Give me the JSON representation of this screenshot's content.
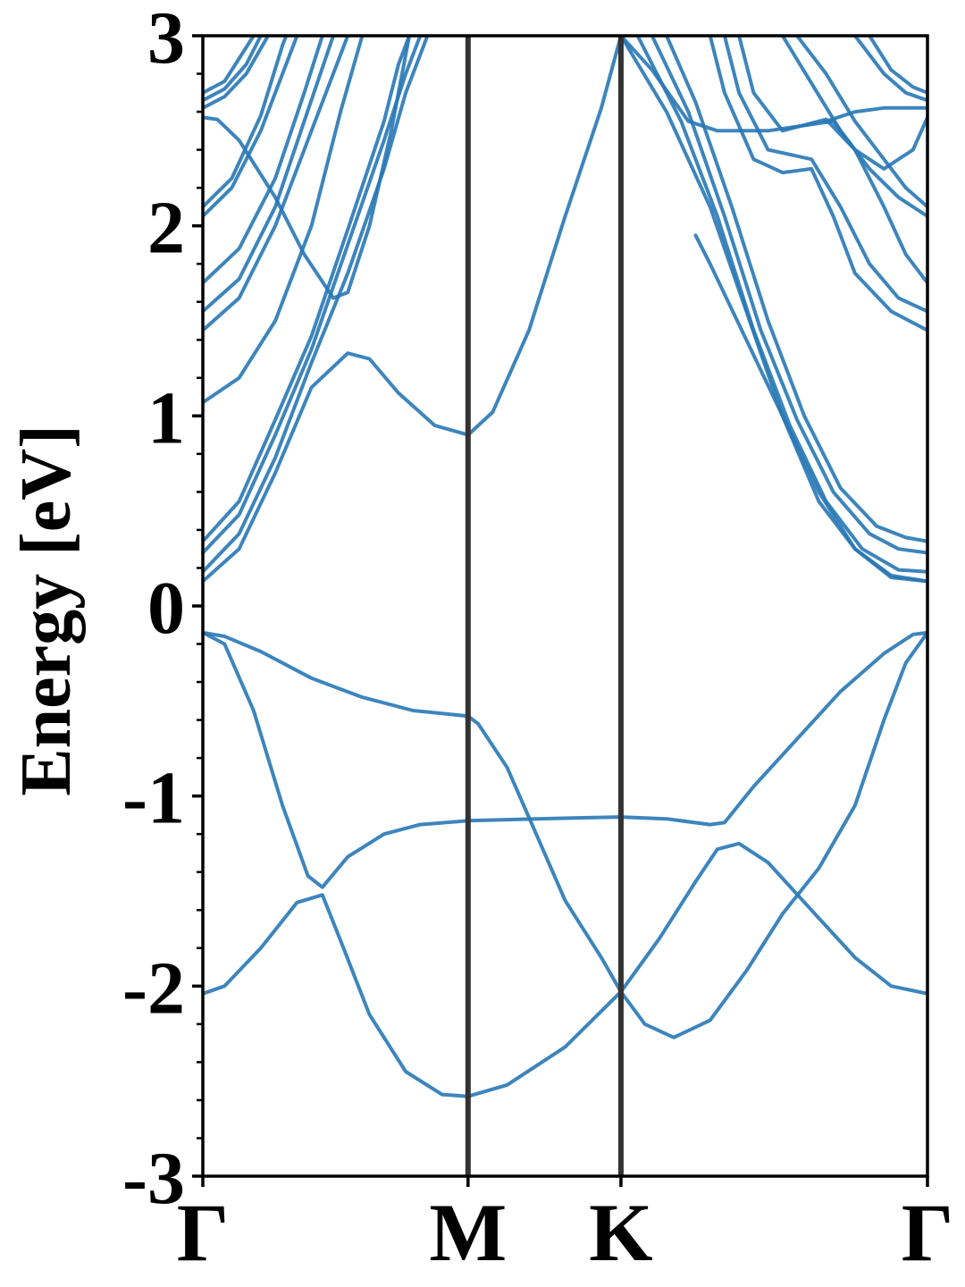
{
  "chart_data": {
    "type": "line",
    "title": "",
    "xlabel": "",
    "ylabel": "Energy [eV]",
    "ylim": [
      -3,
      3
    ],
    "xlim": [
      0,
      1
    ],
    "grid": false,
    "line_color": "#2878b5",
    "symmetry_line_color": "#333333",
    "x_ticks": [
      {
        "label": "Γ",
        "x": 0.0
      },
      {
        "label": "M",
        "x": 0.366
      },
      {
        "label": "K",
        "x": 0.577
      },
      {
        "label": "Γ",
        "x": 1.0
      }
    ],
    "symmetry_lines": [
      0.366,
      0.577
    ],
    "y_ticks": [
      {
        "label": "3",
        "value": 3
      },
      {
        "label": "2",
        "value": 2
      },
      {
        "label": "1",
        "value": 1
      },
      {
        "label": "0",
        "value": 0
      },
      {
        "label": "-1",
        "value": -1
      },
      {
        "label": "-2",
        "value": -2
      },
      {
        "label": "-3",
        "value": -3
      }
    ],
    "series": [
      {
        "points": [
          [
            0,
            -0.14
          ],
          [
            0.03,
            -0.16
          ],
          [
            0.08,
            -0.24
          ],
          [
            0.15,
            -0.38
          ],
          [
            0.22,
            -0.48
          ],
          [
            0.29,
            -0.55
          ],
          [
            0.366,
            -0.58
          ],
          [
            0.38,
            -0.62
          ],
          [
            0.42,
            -0.85
          ],
          [
            0.46,
            -1.2
          ],
          [
            0.5,
            -1.55
          ],
          [
            0.55,
            -1.85
          ],
          [
            0.577,
            -2.03
          ],
          [
            0.61,
            -2.2
          ],
          [
            0.65,
            -2.27
          ],
          [
            0.7,
            -2.18
          ],
          [
            0.75,
            -1.92
          ],
          [
            0.8,
            -1.62
          ],
          [
            0.85,
            -1.38
          ],
          [
            0.9,
            -1.05
          ],
          [
            0.94,
            -0.6
          ],
          [
            0.97,
            -0.3
          ],
          [
            1.0,
            -0.14
          ]
        ]
      },
      {
        "points": [
          [
            0,
            -0.14
          ],
          [
            0.03,
            -0.2
          ],
          [
            0.07,
            -0.55
          ],
          [
            0.11,
            -1.05
          ],
          [
            0.145,
            -1.42
          ],
          [
            0.165,
            -1.48
          ],
          [
            0.2,
            -1.32
          ],
          [
            0.25,
            -1.2
          ],
          [
            0.3,
            -1.15
          ],
          [
            0.366,
            -1.13
          ],
          [
            0.46,
            -1.12
          ],
          [
            0.577,
            -1.11
          ],
          [
            0.64,
            -1.12
          ],
          [
            0.7,
            -1.15
          ],
          [
            0.72,
            -1.14
          ],
          [
            0.76,
            -0.95
          ],
          [
            0.82,
            -0.7
          ],
          [
            0.88,
            -0.45
          ],
          [
            0.94,
            -0.25
          ],
          [
            0.98,
            -0.15
          ],
          [
            1.0,
            -0.14
          ]
        ]
      },
      {
        "points": [
          [
            0,
            -2.04
          ],
          [
            0.03,
            -2.0
          ],
          [
            0.08,
            -1.8
          ],
          [
            0.13,
            -1.56
          ],
          [
            0.165,
            -1.52
          ],
          [
            0.19,
            -1.76
          ],
          [
            0.23,
            -2.15
          ],
          [
            0.28,
            -2.45
          ],
          [
            0.33,
            -2.57
          ],
          [
            0.366,
            -2.58
          ],
          [
            0.42,
            -2.52
          ],
          [
            0.5,
            -2.32
          ],
          [
            0.577,
            -2.03
          ],
          [
            0.63,
            -1.75
          ],
          [
            0.68,
            -1.45
          ],
          [
            0.71,
            -1.28
          ],
          [
            0.74,
            -1.25
          ],
          [
            0.78,
            -1.35
          ],
          [
            0.84,
            -1.6
          ],
          [
            0.9,
            -1.85
          ],
          [
            0.95,
            -2.0
          ],
          [
            1.0,
            -2.04
          ]
        ]
      },
      {
        "points": [
          [
            0,
            1.07
          ],
          [
            0.05,
            1.2
          ],
          [
            0.1,
            1.5
          ],
          [
            0.15,
            2.0
          ],
          [
            0.19,
            2.6
          ],
          [
            0.22,
            3.0
          ]
        ]
      },
      {
        "points": [
          [
            0,
            0.13
          ],
          [
            0.05,
            0.3
          ],
          [
            0.1,
            0.7
          ],
          [
            0.15,
            1.15
          ],
          [
            0.2,
            1.33
          ],
          [
            0.23,
            1.3
          ],
          [
            0.27,
            1.12
          ],
          [
            0.32,
            0.95
          ],
          [
            0.366,
            0.9
          ],
          [
            0.4,
            1.02
          ],
          [
            0.45,
            1.45
          ],
          [
            0.5,
            2.05
          ],
          [
            0.55,
            2.62
          ],
          [
            0.577,
            3.0
          ]
        ]
      },
      {
        "points": [
          [
            0,
            0.18
          ],
          [
            0.05,
            0.38
          ],
          [
            0.1,
            0.78
          ],
          [
            0.15,
            1.28
          ],
          [
            0.2,
            1.75
          ],
          [
            0.25,
            2.3
          ],
          [
            0.28,
            2.7
          ],
          [
            0.31,
            3.0
          ]
        ]
      },
      {
        "points": [
          [
            0,
            0.28
          ],
          [
            0.05,
            0.48
          ],
          [
            0.1,
            0.9
          ],
          [
            0.15,
            1.35
          ],
          [
            0.2,
            1.9
          ],
          [
            0.25,
            2.45
          ],
          [
            0.28,
            2.8
          ],
          [
            0.3,
            3.0
          ]
        ]
      },
      {
        "points": [
          [
            0,
            0.34
          ],
          [
            0.05,
            0.55
          ],
          [
            0.1,
            0.98
          ],
          [
            0.15,
            1.42
          ],
          [
            0.2,
            1.98
          ],
          [
            0.25,
            2.55
          ],
          [
            0.27,
            2.85
          ],
          [
            0.285,
            3.0
          ]
        ]
      },
      {
        "points": [
          [
            0,
            1.45
          ],
          [
            0.05,
            1.62
          ],
          [
            0.1,
            2.0
          ],
          [
            0.15,
            2.5
          ],
          [
            0.2,
            3.0
          ]
        ]
      },
      {
        "points": [
          [
            0,
            1.55
          ],
          [
            0.05,
            1.72
          ],
          [
            0.1,
            2.1
          ],
          [
            0.14,
            2.55
          ],
          [
            0.18,
            3.0
          ]
        ]
      },
      {
        "points": [
          [
            0,
            1.7
          ],
          [
            0.05,
            1.88
          ],
          [
            0.1,
            2.25
          ],
          [
            0.14,
            2.7
          ],
          [
            0.165,
            3.0
          ]
        ]
      },
      {
        "points": [
          [
            0,
            2.05
          ],
          [
            0.04,
            2.2
          ],
          [
            0.08,
            2.5
          ],
          [
            0.12,
            2.9
          ],
          [
            0.13,
            3.0
          ]
        ]
      },
      {
        "points": [
          [
            0,
            2.1
          ],
          [
            0.04,
            2.25
          ],
          [
            0.08,
            2.58
          ],
          [
            0.11,
            2.95
          ],
          [
            0.115,
            3.0
          ]
        ]
      },
      {
        "points": [
          [
            0,
            2.57
          ],
          [
            0.02,
            2.56
          ],
          [
            0.05,
            2.45
          ],
          [
            0.1,
            2.15
          ],
          [
            0.14,
            1.85
          ],
          [
            0.18,
            1.62
          ],
          [
            0.2,
            1.65
          ],
          [
            0.23,
            2.0
          ],
          [
            0.26,
            2.5
          ],
          [
            0.285,
            3.0
          ]
        ]
      },
      {
        "points": [
          [
            0,
            2.62
          ],
          [
            0.03,
            2.68
          ],
          [
            0.06,
            2.8
          ],
          [
            0.09,
            3.0
          ]
        ]
      },
      {
        "points": [
          [
            0,
            2.66
          ],
          [
            0.03,
            2.72
          ],
          [
            0.06,
            2.85
          ],
          [
            0.08,
            3.0
          ]
        ]
      },
      {
        "points": [
          [
            0,
            2.7
          ],
          [
            0.03,
            2.76
          ],
          [
            0.05,
            2.88
          ],
          [
            0.07,
            3.0
          ]
        ]
      },
      {
        "points": [
          [
            0.577,
            3.0
          ],
          [
            0.64,
            2.6
          ],
          [
            0.7,
            2.1
          ],
          [
            0.75,
            1.55
          ],
          [
            0.8,
            1.0
          ],
          [
            0.85,
            0.55
          ],
          [
            0.9,
            0.3
          ],
          [
            0.95,
            0.16
          ],
          [
            1.0,
            0.13
          ]
        ]
      },
      {
        "points": [
          [
            0.6,
            3.0
          ],
          [
            0.66,
            2.55
          ],
          [
            0.71,
            2.05
          ],
          [
            0.76,
            1.45
          ],
          [
            0.81,
            0.95
          ],
          [
            0.86,
            0.55
          ],
          [
            0.91,
            0.3
          ],
          [
            0.96,
            0.19
          ],
          [
            1.0,
            0.18
          ]
        ]
      },
      {
        "points": [
          [
            0.62,
            3.0
          ],
          [
            0.67,
            2.6
          ],
          [
            0.72,
            2.05
          ],
          [
            0.77,
            1.45
          ],
          [
            0.82,
            0.98
          ],
          [
            0.87,
            0.6
          ],
          [
            0.92,
            0.38
          ],
          [
            0.96,
            0.3
          ],
          [
            1.0,
            0.28
          ]
        ]
      },
      {
        "points": [
          [
            0.64,
            3.0
          ],
          [
            0.68,
            2.65
          ],
          [
            0.73,
            2.1
          ],
          [
            0.78,
            1.5
          ],
          [
            0.83,
            1.0
          ],
          [
            0.88,
            0.62
          ],
          [
            0.93,
            0.42
          ],
          [
            0.97,
            0.36
          ],
          [
            1.0,
            0.34
          ]
        ]
      },
      {
        "points": [
          [
            0.577,
            3.0
          ],
          [
            0.62,
            2.82
          ],
          [
            0.67,
            2.55
          ],
          [
            0.71,
            2.5
          ],
          [
            0.78,
            2.5
          ],
          [
            0.87,
            2.55
          ],
          [
            0.9,
            2.4
          ],
          [
            0.94,
            2.3
          ],
          [
            0.98,
            2.4
          ],
          [
            1.0,
            2.57
          ]
        ]
      },
      {
        "points": [
          [
            0.7,
            3.0
          ],
          [
            0.72,
            2.7
          ],
          [
            0.76,
            2.35
          ],
          [
            0.8,
            2.28
          ],
          [
            0.84,
            2.3
          ],
          [
            0.87,
            2.05
          ],
          [
            0.9,
            1.75
          ],
          [
            0.95,
            1.55
          ],
          [
            1.0,
            1.45
          ]
        ]
      },
      {
        "points": [
          [
            0.72,
            3.0
          ],
          [
            0.74,
            2.7
          ],
          [
            0.78,
            2.4
          ],
          [
            0.84,
            2.35
          ],
          [
            0.88,
            2.1
          ],
          [
            0.92,
            1.8
          ],
          [
            0.96,
            1.62
          ],
          [
            1.0,
            1.55
          ]
        ]
      },
      {
        "points": [
          [
            0.74,
            3.0
          ],
          [
            0.76,
            2.7
          ],
          [
            0.8,
            2.5
          ],
          [
            0.86,
            2.56
          ],
          [
            0.9,
            2.4
          ],
          [
            0.94,
            2.1
          ],
          [
            0.97,
            1.85
          ],
          [
            1.0,
            1.7
          ]
        ]
      },
      {
        "points": [
          [
            0.8,
            3.0
          ],
          [
            0.84,
            2.75
          ],
          [
            0.88,
            2.5
          ],
          [
            0.92,
            2.3
          ],
          [
            0.96,
            2.15
          ],
          [
            1.0,
            2.05
          ]
        ]
      },
      {
        "points": [
          [
            0.82,
            3.0
          ],
          [
            0.86,
            2.8
          ],
          [
            0.9,
            2.55
          ],
          [
            0.94,
            2.35
          ],
          [
            0.97,
            2.2
          ],
          [
            1.0,
            2.1
          ]
        ]
      },
      {
        "points": [
          [
            0.86,
            2.55
          ],
          [
            0.9,
            2.6
          ],
          [
            0.94,
            2.62
          ],
          [
            0.97,
            2.62
          ],
          [
            1.0,
            2.62
          ]
        ]
      },
      {
        "points": [
          [
            0.9,
            3.0
          ],
          [
            0.94,
            2.8
          ],
          [
            0.97,
            2.7
          ],
          [
            1.0,
            2.66
          ]
        ]
      },
      {
        "points": [
          [
            0.92,
            3.0
          ],
          [
            0.95,
            2.82
          ],
          [
            0.98,
            2.73
          ],
          [
            1.0,
            2.7
          ]
        ]
      },
      {
        "points": [
          [
            0.68,
            1.95
          ],
          [
            0.7,
            1.8
          ],
          [
            0.75,
            1.4
          ],
          [
            0.8,
            1.0
          ],
          [
            0.85,
            0.6
          ],
          [
            0.9,
            0.3
          ],
          [
            0.95,
            0.15
          ],
          [
            1.0,
            0.13
          ]
        ]
      }
    ]
  }
}
